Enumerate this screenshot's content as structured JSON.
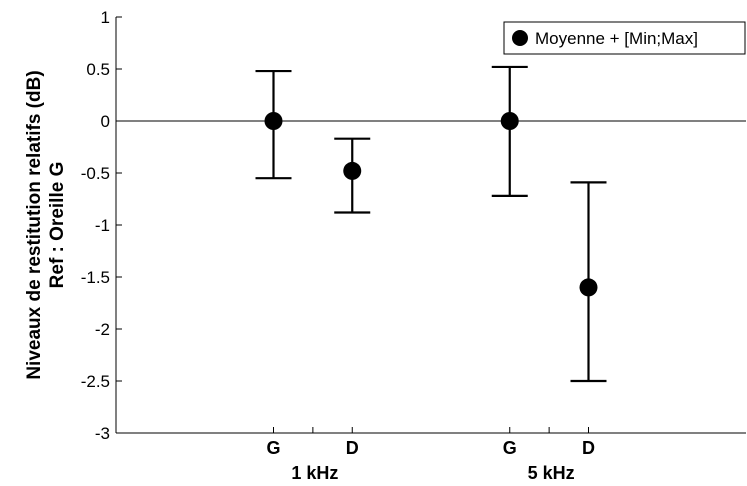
{
  "chart_data": {
    "type": "scatter",
    "title": "",
    "ylabel_lines": [
      "Niveaux de restitution relatifs (dB)",
      "Ref : Oreille G"
    ],
    "ylim": [
      -3,
      1
    ],
    "yticks": [
      1,
      0.5,
      0,
      -0.5,
      -1,
      -1.5,
      -2,
      -2.5,
      -3
    ],
    "ytick_labels": [
      "1",
      "0.5",
      "0",
      "-0.5",
      "-1",
      "-1.5",
      "-2",
      "-2.5",
      "-3"
    ],
    "groups": [
      "1 kHz",
      "5 kHz"
    ],
    "categories": [
      "G",
      "D",
      "G",
      "D"
    ],
    "series": [
      {
        "name": "Moyenne + [Min;Max]",
        "values": [
          0,
          -0.48,
          0,
          -1.6
        ],
        "min": [
          -0.55,
          -0.88,
          -0.72,
          -2.5
        ],
        "max": [
          0.48,
          -0.17,
          0.52,
          -0.59
        ]
      }
    ],
    "legend_position": "top-right",
    "zero_line": true,
    "grid": false
  }
}
